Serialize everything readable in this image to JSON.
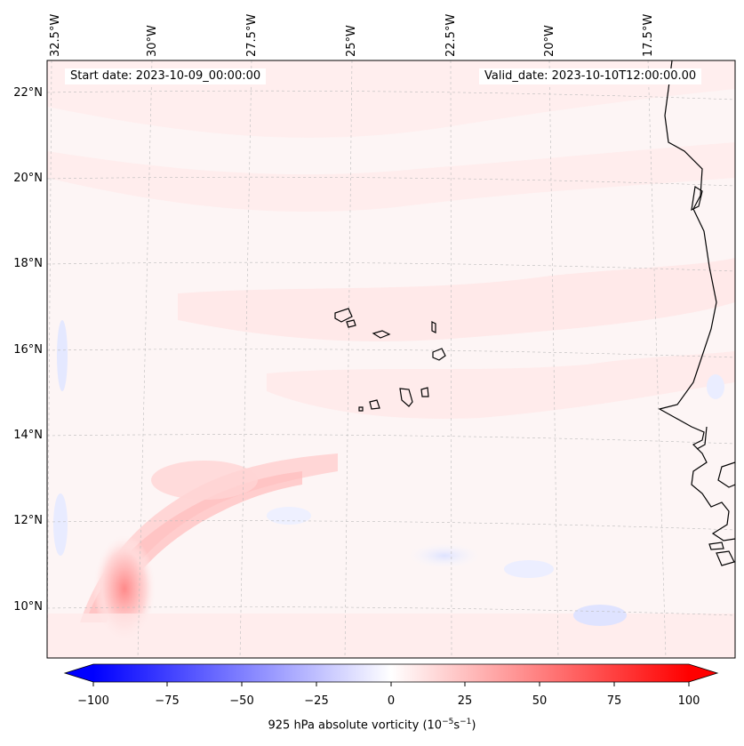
{
  "map": {
    "start_date": "Start date: 2023-10-09_00:00:00",
    "valid_date": "Valid_date: 2023-10-10T12:00:00.00",
    "lon_labels": [
      "32.5°W",
      "30°W",
      "27.5°W",
      "25°W",
      "22.5°W",
      "20°W",
      "17.5°W"
    ],
    "lat_labels": [
      "22°N",
      "20°N",
      "18°N",
      "16°N",
      "14°N",
      "12°N",
      "10°N"
    ],
    "colorbar": {
      "ticks": [
        "−100",
        "−75",
        "−50",
        "−25",
        "0",
        "25",
        "50",
        "75",
        "100"
      ],
      "label_prefix": "925 hPa absolute vorticity (10",
      "label_exp1": "−5",
      "label_mid": "s",
      "label_exp2": "−1",
      "label_suffix": ")",
      "min": -100,
      "max": 100,
      "cmap": "bwr",
      "colors": {
        "low": "#0000ff",
        "mid": "#ffffff",
        "high": "#ff0000"
      }
    },
    "features": [
      "coastline-icon",
      "gridlines"
    ]
  }
}
